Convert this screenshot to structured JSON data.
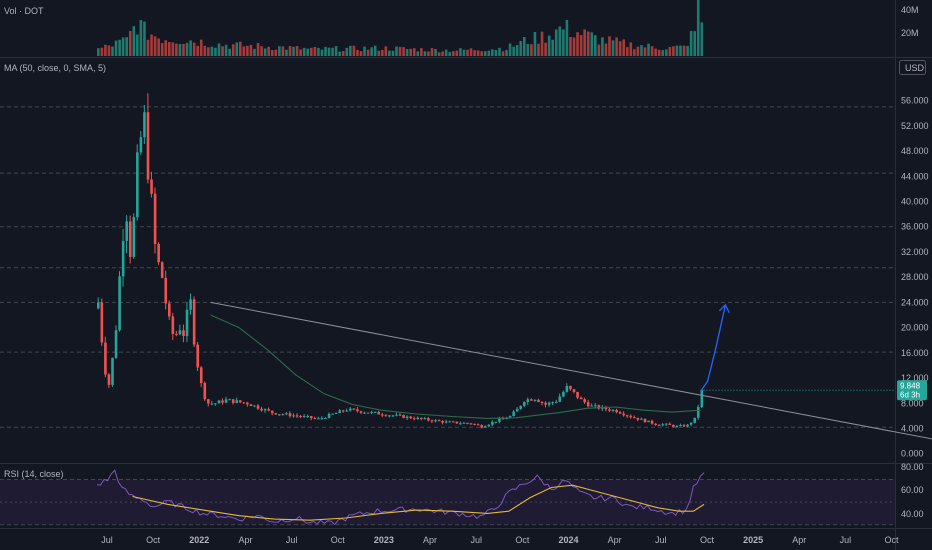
{
  "colors": {
    "background": "#131722",
    "up": "#26a69a",
    "down": "#ef5350",
    "vol_up": "#1f7a70",
    "vol_down": "#a63b39",
    "grid_dash": "#434651",
    "separator": "#2a2e39",
    "ma": "#2e6b4a",
    "trendline": "#8c8f99",
    "projection": "#2962ff",
    "rsi_line": "#7e57c2",
    "rsi_ma": "#e2b93b",
    "rsi_band": "#1e1b33",
    "badge_bg": "#26a69a",
    "usd_border": "#50535e"
  },
  "panes": {
    "volume": {
      "title": "Vol · DOT",
      "axis_labels": [
        "40M",
        "20M"
      ]
    },
    "price": {
      "title": "MA (50, close, 0, SMA, 5)",
      "currency": "USD"
    },
    "rsi": {
      "title": "RSI (14, close)",
      "axis_labels": [
        "80.00",
        "60.00",
        "40.00"
      ]
    }
  },
  "current_price": {
    "value": "9.848",
    "countdown": "6d 3h"
  },
  "chart_data": {
    "type": "candlestick",
    "timeframe": "weekly",
    "symbol": "DOT",
    "price_axis": {
      "ticks": [
        0,
        4,
        8,
        12,
        16,
        20,
        24,
        28,
        32,
        36,
        40,
        44,
        48,
        52,
        56
      ],
      "tick_labels": [
        "0.000",
        "4.000",
        "8.000",
        "12.000",
        "16.000",
        "20.000",
        "24.000",
        "28.000",
        "32.000",
        "36.000",
        "40.000",
        "44.000",
        "48.000",
        "52.000",
        "56.000"
      ],
      "range": [
        -1,
        58
      ]
    },
    "time_axis": {
      "labels": [
        "Jul",
        "Oct",
        "2022",
        "Apr",
        "Jul",
        "Oct",
        "2023",
        "Apr",
        "Jul",
        "Oct",
        "2024",
        "Apr",
        "Jul",
        "Oct",
        "2025",
        "Apr",
        "Jul",
        "Oct"
      ],
      "label_week_index": [
        0,
        13,
        26,
        39,
        52,
        65,
        78,
        91,
        104,
        117,
        130,
        143,
        156,
        169,
        182,
        195,
        208,
        221
      ],
      "bold_labels": [
        "2022",
        "2023",
        "2024",
        "2025"
      ]
    },
    "horizontal_levels": [
      4.2,
      16.1,
      24.0,
      29.5,
      36.0,
      44.5,
      55.0
    ],
    "candle_anchors": [
      [
        0,
        24
      ],
      [
        1,
        18
      ],
      [
        2,
        13
      ],
      [
        3,
        11
      ],
      [
        4,
        15
      ],
      [
        5,
        20
      ],
      [
        6,
        28
      ],
      [
        7,
        35
      ],
      [
        8,
        38
      ],
      [
        9,
        32
      ],
      [
        10,
        37
      ],
      [
        11,
        46
      ],
      [
        12,
        50
      ],
      [
        13,
        53
      ],
      [
        14,
        45
      ],
      [
        15,
        40
      ],
      [
        16,
        33
      ],
      [
        17,
        30
      ],
      [
        18,
        28
      ],
      [
        19,
        24
      ],
      [
        20,
        21
      ],
      [
        21,
        19
      ],
      [
        22,
        19
      ],
      [
        23,
        20
      ],
      [
        24,
        19
      ],
      [
        25,
        22
      ],
      [
        26,
        24
      ],
      [
        27,
        18
      ],
      [
        28,
        14
      ],
      [
        29,
        11
      ],
      [
        30,
        9
      ],
      [
        31,
        8
      ],
      [
        33,
        8
      ],
      [
        36,
        8.5
      ],
      [
        42,
        8
      ],
      [
        49,
        6.5
      ],
      [
        56,
        6
      ],
      [
        62,
        5.5
      ],
      [
        70,
        7
      ],
      [
        77,
        6.5
      ],
      [
        84,
        6
      ],
      [
        91,
        5.5
      ],
      [
        98,
        5
      ],
      [
        105,
        4.8
      ],
      [
        108,
        4.3
      ],
      [
        112,
        5.2
      ],
      [
        116,
        5.9
      ],
      [
        118,
        7
      ],
      [
        120,
        8.5
      ],
      [
        123,
        8.8
      ],
      [
        126,
        7.8
      ],
      [
        129,
        8.4
      ],
      [
        132,
        10.5
      ],
      [
        134,
        9.6
      ],
      [
        136,
        8.5
      ],
      [
        139,
        7.5
      ],
      [
        142,
        7.2
      ],
      [
        146,
        6.8
      ],
      [
        150,
        5.9
      ],
      [
        154,
        5.2
      ],
      [
        157,
        4.7
      ],
      [
        160,
        4.6
      ],
      [
        163,
        4.3
      ],
      [
        166,
        4.5
      ],
      [
        168,
        5.5
      ],
      [
        169,
        7.5
      ],
      [
        170,
        9.85
      ]
    ],
    "ma_anchors": [
      [
        32,
        22
      ],
      [
        40,
        20
      ],
      [
        48,
        16.5
      ],
      [
        56,
        12.5
      ],
      [
        64,
        9.5
      ],
      [
        72,
        7.8
      ],
      [
        80,
        6.9
      ],
      [
        90,
        6.3
      ],
      [
        100,
        5.9
      ],
      [
        110,
        5.6
      ],
      [
        118,
        5.7
      ],
      [
        124,
        6.1
      ],
      [
        130,
        6.5
      ],
      [
        138,
        7.2
      ],
      [
        146,
        7.4
      ],
      [
        154,
        6.9
      ],
      [
        162,
        6.6
      ],
      [
        170,
        6.9
      ]
    ],
    "trendline": {
      "start": [
        32,
        24
      ],
      "end": [
        246,
        1.2
      ]
    },
    "projection": [
      [
        170,
        9.85
      ],
      [
        172,
        11.5
      ],
      [
        174,
        16
      ],
      [
        176,
        21
      ],
      [
        177,
        23.6
      ]
    ],
    "volume_axis": {
      "ticks": [
        20,
        40
      ],
      "unit": "M"
    },
    "volume_anchors": [
      [
        0,
        6
      ],
      [
        4,
        10
      ],
      [
        8,
        14
      ],
      [
        11,
        30
      ],
      [
        13,
        22
      ],
      [
        18,
        16
      ],
      [
        26,
        14
      ],
      [
        35,
        10
      ],
      [
        50,
        8
      ],
      [
        60,
        6
      ],
      [
        80,
        7
      ],
      [
        100,
        5
      ],
      [
        115,
        7
      ],
      [
        120,
        13
      ],
      [
        126,
        18
      ],
      [
        131,
        25
      ],
      [
        136,
        20
      ],
      [
        142,
        14
      ],
      [
        150,
        10
      ],
      [
        160,
        7
      ],
      [
        165,
        8
      ],
      [
        168,
        22
      ],
      [
        169,
        45
      ],
      [
        170,
        32
      ],
      [
        171,
        18
      ]
    ],
    "rsi_axis": {
      "ticks": [
        40,
        60,
        80
      ],
      "band": [
        30,
        70
      ],
      "range": [
        28,
        82
      ]
    },
    "rsi_anchors": [
      [
        0,
        65
      ],
      [
        3,
        70
      ],
      [
        5,
        78
      ],
      [
        7,
        62
      ],
      [
        10,
        55
      ],
      [
        13,
        52
      ],
      [
        16,
        46
      ],
      [
        20,
        50
      ],
      [
        25,
        45
      ],
      [
        30,
        40
      ],
      [
        35,
        38
      ],
      [
        40,
        35
      ],
      [
        45,
        38
      ],
      [
        50,
        33
      ],
      [
        56,
        36
      ],
      [
        60,
        32
      ],
      [
        66,
        31
      ],
      [
        72,
        38
      ],
      [
        78,
        42
      ],
      [
        84,
        43
      ],
      [
        90,
        44
      ],
      [
        96,
        42
      ],
      [
        102,
        40
      ],
      [
        108,
        37
      ],
      [
        112,
        44
      ],
      [
        116,
        58
      ],
      [
        120,
        66
      ],
      [
        124,
        72
      ],
      [
        128,
        62
      ],
      [
        132,
        69
      ],
      [
        136,
        58
      ],
      [
        140,
        54
      ],
      [
        146,
        53
      ],
      [
        150,
        46
      ],
      [
        156,
        45
      ],
      [
        162,
        40
      ],
      [
        166,
        43
      ],
      [
        168,
        62
      ],
      [
        170,
        72
      ],
      [
        171,
        74
      ]
    ],
    "rsi_ma_anchors": [
      [
        10,
        55
      ],
      [
        20,
        48
      ],
      [
        30,
        43
      ],
      [
        40,
        38
      ],
      [
        50,
        35
      ],
      [
        60,
        34
      ],
      [
        70,
        36
      ],
      [
        80,
        40
      ],
      [
        90,
        43
      ],
      [
        100,
        42
      ],
      [
        110,
        40
      ],
      [
        116,
        42
      ],
      [
        122,
        54
      ],
      [
        128,
        63
      ],
      [
        134,
        65
      ],
      [
        140,
        60
      ],
      [
        146,
        55
      ],
      [
        152,
        50
      ],
      [
        158,
        45
      ],
      [
        164,
        42
      ],
      [
        168,
        42
      ],
      [
        171,
        48
      ]
    ]
  }
}
